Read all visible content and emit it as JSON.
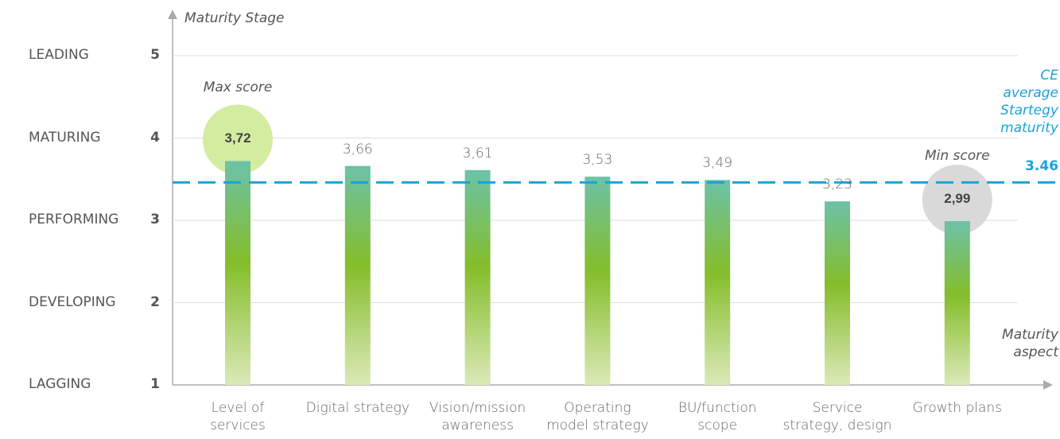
{
  "chart_data": {
    "type": "bar",
    "y_axis_title": "Maturity Stage",
    "x_axis_title": "Maturity\naspect",
    "categories": [
      "Level of\nservices",
      "Digital strategy",
      "Vision/mission\nawareness",
      "Operating\nmodel strategy",
      "BU/function\nscope",
      "Service\nstrategy, design",
      "Growth plans"
    ],
    "values": [
      3.72,
      3.66,
      3.61,
      3.53,
      3.49,
      3.23,
      2.99
    ],
    "value_labels": [
      "3,72",
      "3,66",
      "3,61",
      "3,53",
      "3,49",
      "3,23",
      "2,99"
    ],
    "colors": [
      "#6cc2a8",
      "#84bd2a",
      "#dbe9b8"
    ],
    "ylim": [
      1,
      5
    ],
    "yticks": [
      1,
      2,
      3,
      4,
      5
    ],
    "stage_labels": [
      "LAGGING",
      "DEVELOPING",
      "PERFORMING",
      "MATURING",
      "LEADING"
    ],
    "grid": true,
    "highlights": [
      {
        "index": 0,
        "label": "Max score",
        "color": "#d3eca0"
      },
      {
        "index": 6,
        "label": "Min score",
        "color": "#d9d9d9"
      }
    ],
    "reference": {
      "value": 3.46,
      "label": "3.46",
      "text": "CE\naverage\nStartegy\nmaturity",
      "color": "#1aa3d9"
    }
  }
}
